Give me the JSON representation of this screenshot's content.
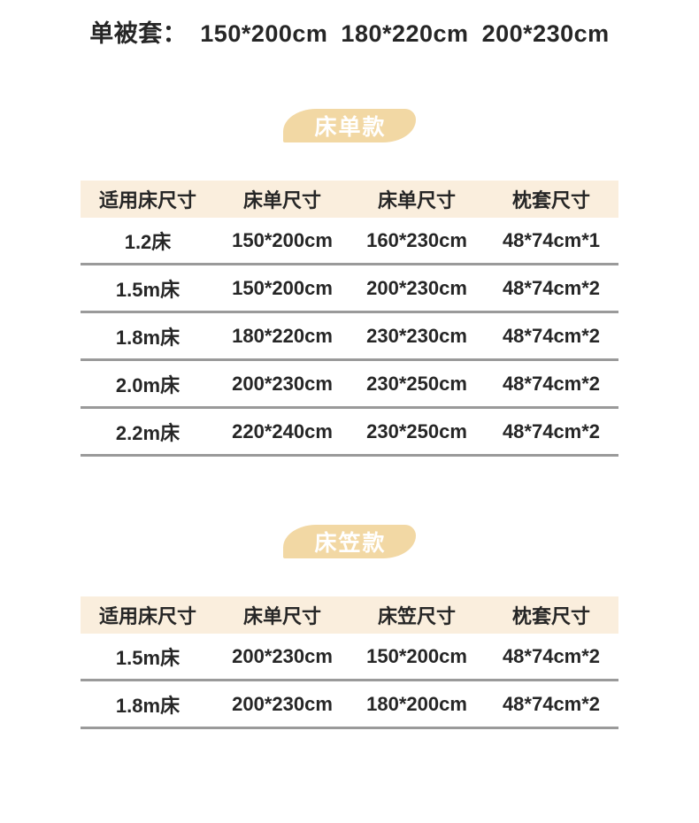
{
  "title": {
    "label": "单被套：",
    "sizes": [
      "150*200cm",
      "180*220cm",
      "200*230cm"
    ]
  },
  "colors": {
    "badge_bg": "#F2D8A4",
    "header_bg": "#FAEEDD",
    "divider": "#9A9A9A",
    "text": "#262626",
    "badge_text": "#FFFFFF",
    "page_bg": "#FFFFFF"
  },
  "sections": [
    {
      "badge": "床单款",
      "table": {
        "headers": [
          "适用床尺寸",
          "床单尺寸",
          "床单尺寸",
          "枕套尺寸"
        ],
        "rows": [
          [
            "1.2床",
            "150*200cm",
            "160*230cm",
            "48*74cm*1"
          ],
          [
            "1.5m床",
            "150*200cm",
            "200*230cm",
            "48*74cm*2"
          ],
          [
            "1.8m床",
            "180*220cm",
            "230*230cm",
            "48*74cm*2"
          ],
          [
            "2.0m床",
            "200*230cm",
            "230*250cm",
            "48*74cm*2"
          ],
          [
            "2.2m床",
            "220*240cm",
            "230*250cm",
            "48*74cm*2"
          ]
        ]
      }
    },
    {
      "badge": "床笠款",
      "table": {
        "headers": [
          "适用床尺寸",
          "床单尺寸",
          "床笠尺寸",
          "枕套尺寸"
        ],
        "rows": [
          [
            "1.5m床",
            "200*230cm",
            "150*200cm",
            "48*74cm*2"
          ],
          [
            "1.8m床",
            "200*230cm",
            "180*200cm",
            "48*74cm*2"
          ]
        ]
      }
    }
  ]
}
